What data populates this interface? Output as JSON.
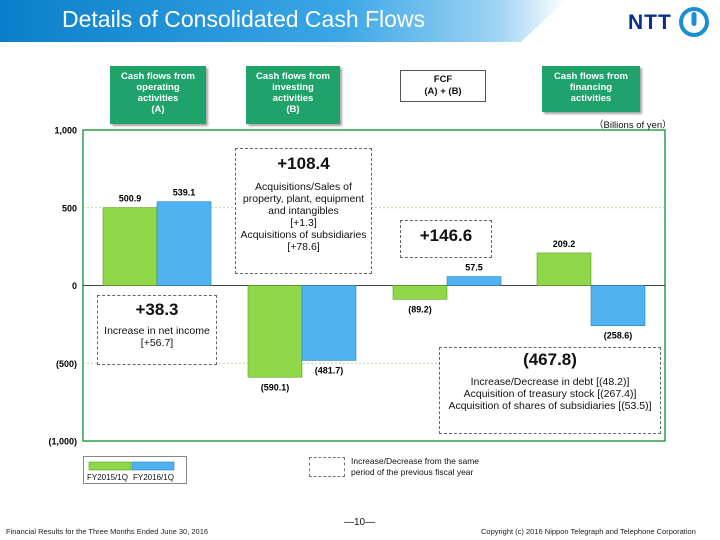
{
  "header": {
    "title": "Details of Consolidated Cash Flows",
    "logo_text": "NTT"
  },
  "categories": [
    {
      "lines": [
        "Cash flows from",
        "operating",
        "activities",
        "(A)"
      ]
    },
    {
      "lines": [
        "Cash flows from",
        "investing",
        "activities",
        "(B)"
      ]
    },
    {
      "lines": [
        "FCF",
        "(A) + (B)"
      ]
    },
    {
      "lines": [
        "Cash flows from",
        "financing",
        "activities"
      ]
    }
  ],
  "unit_label": "（Billions of yen）",
  "chart_data": {
    "type": "bar",
    "categories": [
      "Cash flows from operating activities (A)",
      "Cash flows from investing activities (B)",
      "FCF (A) + (B)",
      "Cash flows from financing activities"
    ],
    "series": [
      {
        "name": "FY2015/1Q",
        "values": [
          500.9,
          -590.1,
          -89.2,
          209.2
        ],
        "color": "#8ed84a"
      },
      {
        "name": "FY2016/1Q",
        "values": [
          539.1,
          -481.7,
          57.5,
          -258.6
        ],
        "color": "#4fb3f2"
      }
    ],
    "value_labels": [
      [
        "500.9",
        "(590.1)",
        "(89.2)",
        "209.2"
      ],
      [
        "539.1",
        "(481.7)",
        "57.5",
        "(258.6)"
      ]
    ],
    "ylim": [
      -1000,
      1000
    ],
    "yticks": [
      1000,
      500,
      0,
      -500,
      -1000
    ],
    "ytick_labels": [
      "1,000",
      "500",
      "0",
      "(500)",
      "(1,000)"
    ],
    "grid": true,
    "legend_position": "bottom-left"
  },
  "notes": {
    "operating": {
      "big": "+38.3",
      "lines": [
        "Increase in net income",
        "[+56.7]"
      ]
    },
    "investing": {
      "big": "+108.4",
      "lines": [
        "Acquisitions/Sales of",
        "property, plant, equipment",
        "and intangibles",
        "[+1.3]",
        "Acquisitions of subsidiaries",
        "[+78.6]"
      ]
    },
    "fcf": {
      "big": "+146.6"
    },
    "financing": {
      "big": "(467.8)",
      "lines": [
        "Increase/Decrease in debt [(48.2)]",
        "Acquisition of treasury stock [(267.4)]",
        "Acquisition of shares of subsidiaries [(53.5)]"
      ]
    }
  },
  "legend": {
    "series1": "FY2015/1Q",
    "series2": "FY2016/1Q",
    "dashed_lines": [
      "Increase/Decrease from the same",
      "period of the previous fiscal year"
    ]
  },
  "footer": {
    "left": "Financial Results for the Three Months Ended June 30, 2016",
    "page": "―10―",
    "right": "Copyright (c) 2016 Nippon Telegraph and Telephone Corporation"
  }
}
